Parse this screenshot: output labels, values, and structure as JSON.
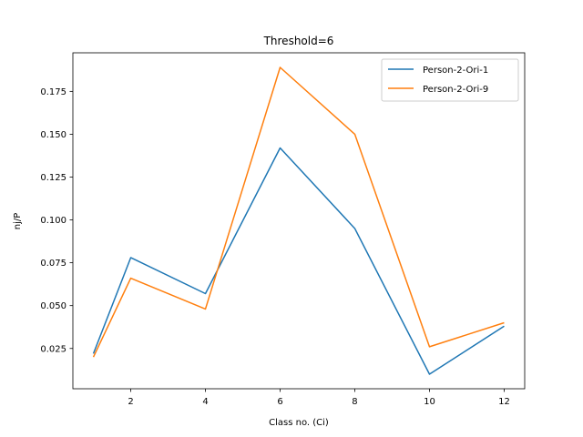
{
  "chart_data": {
    "type": "line",
    "title": "Threshold=6",
    "xlabel": "Class no. (Ci)",
    "ylabel": "nj/P",
    "x": [
      1,
      2,
      4,
      6,
      8,
      10,
      12
    ],
    "xlim": [
      0.45,
      12.55
    ],
    "ylim": [
      0.0015,
      0.1975
    ],
    "xticks": [
      2,
      4,
      6,
      8,
      10,
      12
    ],
    "yticks": [
      0.025,
      0.05,
      0.075,
      0.1,
      0.125,
      0.15,
      0.175
    ],
    "ytick_labels": [
      "0.025",
      "0.050",
      "0.075",
      "0.100",
      "0.125",
      "0.150",
      "0.175"
    ],
    "grid": false,
    "legend_position": "top-right",
    "series": [
      {
        "name": "Person-2-Ori-1",
        "color": "#1f77b4",
        "values": [
          0.022,
          0.078,
          0.057,
          0.142,
          0.095,
          0.01,
          0.038
        ]
      },
      {
        "name": "Person-2-Ori-9",
        "color": "#ff7f0e",
        "values": [
          0.02,
          0.066,
          0.048,
          0.189,
          0.15,
          0.026,
          0.04
        ]
      }
    ]
  }
}
